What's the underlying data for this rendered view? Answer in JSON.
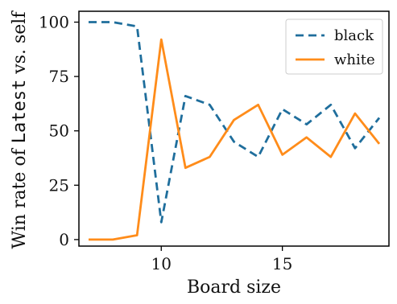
{
  "chart_data": {
    "type": "line",
    "xlabel": "Board size",
    "ylabel_parts": [
      "Win rate of ",
      "Latest",
      " vs. self"
    ],
    "xlim": [
      6.6,
      19.4
    ],
    "ylim": [
      -3,
      105
    ],
    "xticks": [
      10,
      15
    ],
    "yticks": [
      0,
      25,
      50,
      75,
      100
    ],
    "x": [
      7,
      8,
      9,
      10,
      11,
      12,
      13,
      14,
      15,
      16,
      17,
      18,
      19
    ],
    "series": [
      {
        "name": "black",
        "color": "#1f6e9c",
        "style": "dashed",
        "values": [
          100,
          100,
          98,
          8,
          66,
          62,
          45,
          38,
          60,
          53,
          62,
          42,
          56
        ]
      },
      {
        "name": "white",
        "color": "#ff8c1a",
        "style": "solid",
        "values": [
          0,
          0,
          2,
          92,
          33,
          38,
          55,
          62,
          39,
          47,
          38,
          58,
          44
        ]
      }
    ],
    "legend_position": "top-right",
    "grid": false
  }
}
